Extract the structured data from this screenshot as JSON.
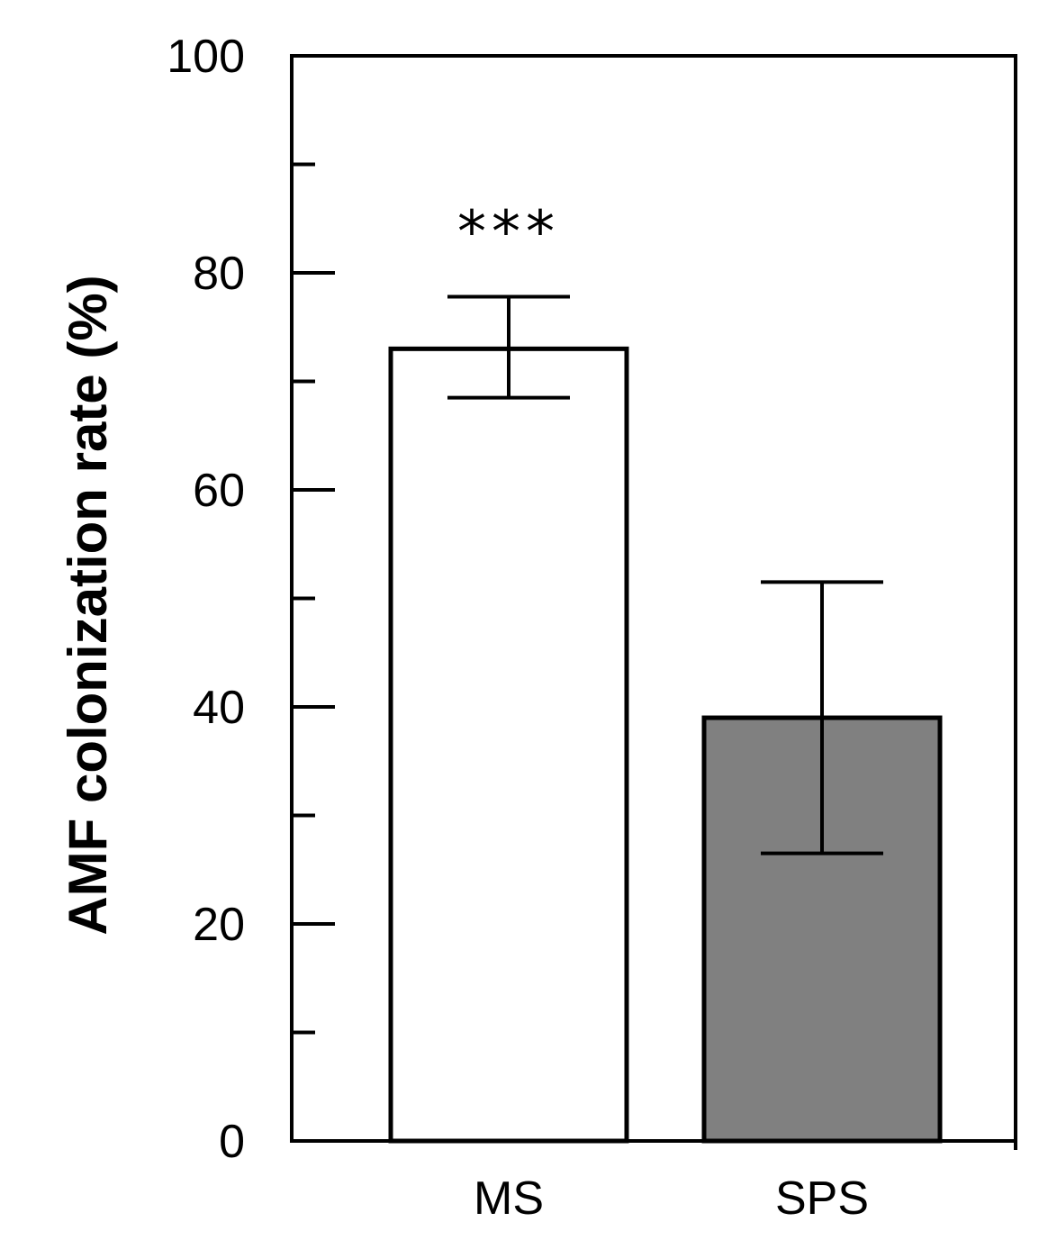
{
  "chart_data": {
    "type": "bar",
    "categories": [
      "MS",
      "SPS"
    ],
    "values": [
      73,
      39
    ],
    "errors": [
      {
        "low": 68.5,
        "high": 77.8
      },
      {
        "low": 26.5,
        "high": 51.5
      }
    ],
    "annotations": [
      "***",
      ""
    ],
    "ylabel": "AMF colonization rate (%)",
    "xlabel": "",
    "ylim": [
      0,
      100
    ],
    "yticks_major": [
      0,
      20,
      40,
      60,
      80,
      100
    ],
    "yticks_minor": [
      10,
      30,
      50,
      70,
      90
    ],
    "grid": false,
    "bar_colors": [
      "#ffffff",
      "#808080"
    ],
    "edge_color": "#000000"
  }
}
